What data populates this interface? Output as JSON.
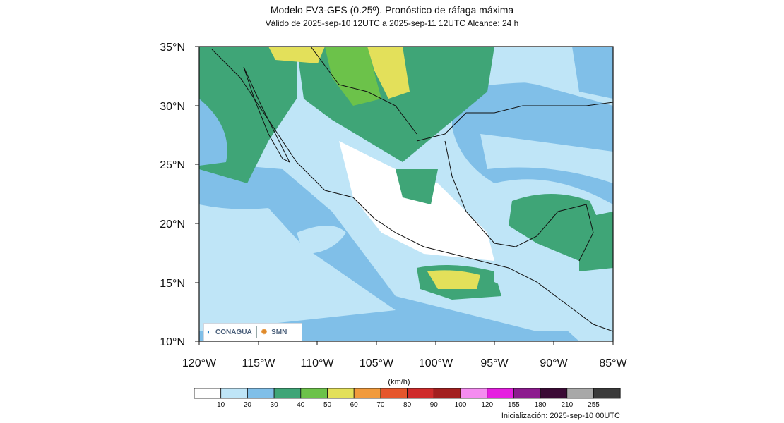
{
  "header": {
    "title": "Modelo FV3-GFS (0.25º). Pronóstico de ráfaga máxima",
    "subtitle": "Válido de 2025-sep-10 12UTC a 2025-sep-11 12UTC    Alcance: 24 h"
  },
  "axes": {
    "lat_ticks": [
      "35°N",
      "30°N",
      "25°N",
      "20°N",
      "15°N",
      "10°N"
    ],
    "lon_ticks": [
      "120°W",
      "115°W",
      "110°W",
      "105°W",
      "100°W",
      "95°W",
      "90°W",
      "85°W"
    ]
  },
  "colorbar": {
    "units": "(km/h)",
    "levels": [
      "10",
      "20",
      "30",
      "40",
      "50",
      "60",
      "70",
      "80",
      "90",
      "100",
      "120",
      "155",
      "180",
      "210",
      "255"
    ],
    "colors": [
      "#ffffff",
      "#bfe5f7",
      "#80bfe8",
      "#3fa577",
      "#6cc24a",
      "#e3e05a",
      "#f19a3c",
      "#e5562c",
      "#cf2b2b",
      "#a31f1f",
      "#f48cf0",
      "#e51ee0",
      "#8c1a8e",
      "#3a0a35",
      "#a8a8a8",
      "#3a3a3a"
    ]
  },
  "logos": {
    "left": "CONAGUA",
    "right": "SMN"
  },
  "footer": {
    "init": "Inicialización: 2025-sep-10 00UTC"
  }
}
